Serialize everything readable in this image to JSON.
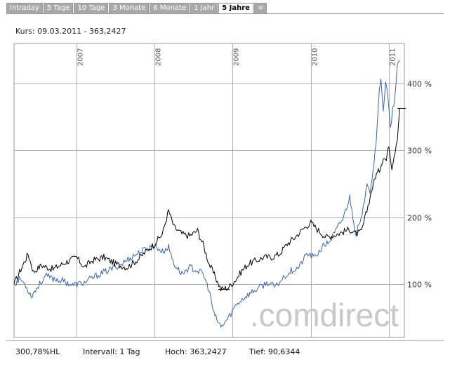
{
  "tabs": [
    {
      "label": "Intraday",
      "active": false
    },
    {
      "label": "5 Tage",
      "active": false
    },
    {
      "label": "10 Tage",
      "active": false
    },
    {
      "label": "3 Monate",
      "active": false
    },
    {
      "label": "6 Monate",
      "active": false
    },
    {
      "label": "1 Jahr",
      "active": false
    },
    {
      "label": "5 Jahre",
      "active": true
    },
    {
      "label": "∞",
      "active": false
    }
  ],
  "header": {
    "kurs": "Kurs: 09.03.2011 - 363,2427"
  },
  "footer": {
    "percent": "300,78%HL",
    "interval": "Intervall: 1 Tag",
    "high": "Hoch: 363,2427",
    "low": "Tief: 90,6344"
  },
  "watermark": ".comdirect",
  "colors": {
    "black_series": "#000000",
    "blue_series": "#3a66b0",
    "grid": "#b0b0b0",
    "watermark": "#c8c8c8"
  },
  "chart_data": {
    "type": "line",
    "x_unit": "year",
    "xlim": [
      2006.2,
      2011.2
    ],
    "ylim": [
      20,
      460
    ],
    "x_ticks": [
      {
        "label": "2007",
        "x": 2007.0
      },
      {
        "label": "2008",
        "x": 2008.0
      },
      {
        "label": "2009",
        "x": 2009.0
      },
      {
        "label": "2010",
        "x": 2010.0
      },
      {
        "label": "2011",
        "x": 2011.0
      }
    ],
    "y_ticks": [
      {
        "label": "100 %",
        "y": 100
      },
      {
        "label": "200 %",
        "y": 200
      },
      {
        "label": "300 %",
        "y": 300
      },
      {
        "label": "400 %",
        "y": 400
      }
    ],
    "grid": true,
    "current_value": 363.2427,
    "series": [
      {
        "color": "#000000",
        "points": [
          [
            2006.2,
            100
          ],
          [
            2006.3,
            125
          ],
          [
            2006.38,
            145
          ],
          [
            2006.45,
            118
          ],
          [
            2006.55,
            128
          ],
          [
            2006.7,
            122
          ],
          [
            2006.85,
            132
          ],
          [
            2007.0,
            140
          ],
          [
            2007.1,
            125
          ],
          [
            2007.2,
            135
          ],
          [
            2007.35,
            140
          ],
          [
            2007.5,
            130
          ],
          [
            2007.65,
            125
          ],
          [
            2007.8,
            138
          ],
          [
            2007.9,
            150
          ],
          [
            2008.0,
            160
          ],
          [
            2008.1,
            175
          ],
          [
            2008.18,
            210
          ],
          [
            2008.25,
            185
          ],
          [
            2008.35,
            175
          ],
          [
            2008.45,
            172
          ],
          [
            2008.55,
            180
          ],
          [
            2008.62,
            160
          ],
          [
            2008.7,
            130
          ],
          [
            2008.78,
            110
          ],
          [
            2008.85,
            92
          ],
          [
            2008.95,
            95
          ],
          [
            2009.05,
            108
          ],
          [
            2009.12,
            120
          ],
          [
            2009.2,
            130
          ],
          [
            2009.3,
            135
          ],
          [
            2009.4,
            140
          ],
          [
            2009.5,
            140
          ],
          [
            2009.6,
            145
          ],
          [
            2009.7,
            160
          ],
          [
            2009.8,
            170
          ],
          [
            2009.9,
            182
          ],
          [
            2010.0,
            192
          ],
          [
            2010.1,
            180
          ],
          [
            2010.2,
            170
          ],
          [
            2010.35,
            175
          ],
          [
            2010.5,
            182
          ],
          [
            2010.58,
            175
          ],
          [
            2010.65,
            178
          ],
          [
            2010.72,
            210
          ],
          [
            2010.78,
            240
          ],
          [
            2010.83,
            262
          ],
          [
            2010.88,
            270
          ],
          [
            2010.93,
            290
          ],
          [
            2010.97,
            285
          ],
          [
            2011.0,
            310
          ],
          [
            2011.04,
            275
          ],
          [
            2011.08,
            300
          ],
          [
            2011.11,
            320
          ],
          [
            2011.14,
            363.2
          ]
        ]
      },
      {
        "color": "#3a66b0",
        "points": [
          [
            2006.2,
            100
          ],
          [
            2006.28,
            108
          ],
          [
            2006.35,
            98
          ],
          [
            2006.42,
            82
          ],
          [
            2006.5,
            95
          ],
          [
            2006.6,
            112
          ],
          [
            2006.7,
            108
          ],
          [
            2006.82,
            105
          ],
          [
            2006.95,
            98
          ],
          [
            2007.1,
            102
          ],
          [
            2007.25,
            112
          ],
          [
            2007.4,
            120
          ],
          [
            2007.55,
            128
          ],
          [
            2007.7,
            140
          ],
          [
            2007.85,
            150
          ],
          [
            2008.0,
            158
          ],
          [
            2008.1,
            148
          ],
          [
            2008.18,
            155
          ],
          [
            2008.25,
            130
          ],
          [
            2008.35,
            115
          ],
          [
            2008.45,
            125
          ],
          [
            2008.55,
            120
          ],
          [
            2008.62,
            115
          ],
          [
            2008.7,
            90
          ],
          [
            2008.76,
            55
          ],
          [
            2008.85,
            35
          ],
          [
            2008.95,
            50
          ],
          [
            2009.05,
            70
          ],
          [
            2009.15,
            80
          ],
          [
            2009.25,
            88
          ],
          [
            2009.35,
            95
          ],
          [
            2009.45,
            102
          ],
          [
            2009.55,
            95
          ],
          [
            2009.65,
            110
          ],
          [
            2009.75,
            120
          ],
          [
            2009.85,
            125
          ],
          [
            2009.95,
            145
          ],
          [
            2010.05,
            140
          ],
          [
            2010.15,
            155
          ],
          [
            2010.25,
            165
          ],
          [
            2010.35,
            185
          ],
          [
            2010.42,
            200
          ],
          [
            2010.5,
            230
          ],
          [
            2010.58,
            175
          ],
          [
            2010.66,
            200
          ],
          [
            2010.72,
            255
          ],
          [
            2010.76,
            240
          ],
          [
            2010.8,
            270
          ],
          [
            2010.85,
            330
          ],
          [
            2010.88,
            390
          ],
          [
            2010.9,
            410
          ],
          [
            2010.93,
            360
          ],
          [
            2010.96,
            400
          ],
          [
            2010.99,
            380
          ],
          [
            2011.02,
            330
          ],
          [
            2011.05,
            360
          ],
          [
            2011.08,
            380
          ],
          [
            2011.11,
            425
          ],
          [
            2011.14,
            435
          ]
        ]
      }
    ]
  }
}
